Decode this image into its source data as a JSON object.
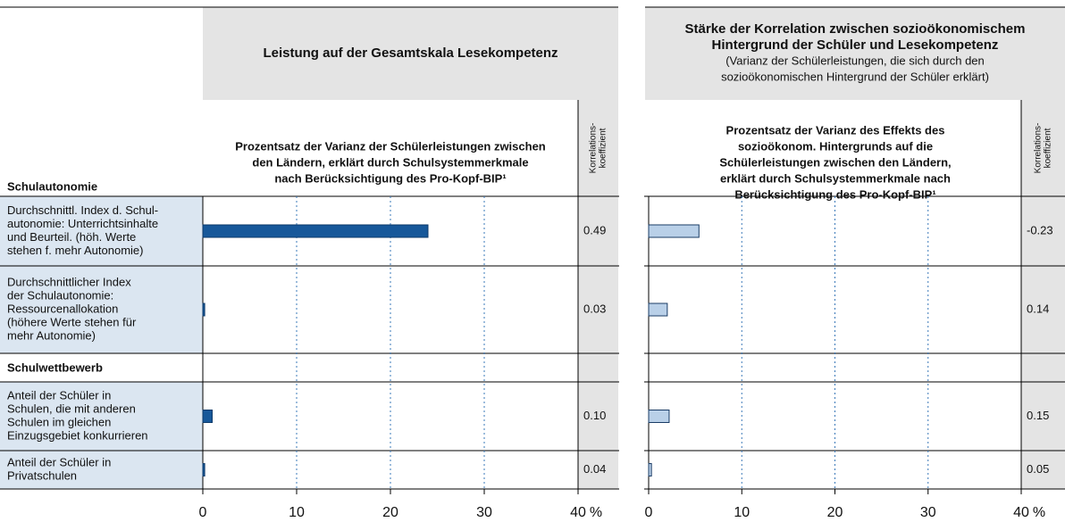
{
  "groups": [
    {
      "name": "Schulautonomie",
      "categories": [
        [
          "Durchschnittl. Index d. Schul-",
          "autonomie: Unterrichtsinhalte",
          "und Beurteil. (höh. Werte",
          "stehen f. mehr Autonomie)"
        ],
        [
          "Durchschnittlicher Index",
          "der Schulautonomie:",
          "Ressourcenallokation",
          "(höhere Werte stehen für",
          "mehr Autonomie)"
        ]
      ]
    },
    {
      "name": "Schulwettbewerb",
      "categories": [
        [
          "Anteil der Schüler in",
          "Schulen, die mit anderen",
          "Schulen im gleichen",
          "Einzugsgebiet konkurrieren"
        ],
        [
          "Anteil der Schüler in",
          "Privatschulen"
        ]
      ]
    }
  ],
  "chart_data": [
    {
      "type": "bar",
      "orientation": "horizontal",
      "color": "#17589a",
      "edge": "#0d3a6a",
      "title": [
        "Leistung auf der Gesamtskala Lesekompetenz"
      ],
      "subtitle": [],
      "column_label": [
        "Prozentsatz der Varianz der Schülerleistungen zwischen",
        "den Ländern, erklärt durch Schulsystemmerkmale",
        "nach Berücksichtigung des Pro-Kopf-BIP¹"
      ],
      "correlation_label": [
        "Korrelations-",
        "koeffizient"
      ],
      "values": [
        [
          24,
          0.2
        ],
        [
          1,
          0.2
        ]
      ],
      "correlations": [
        [
          "0.49",
          "0.03"
        ],
        [
          "0.10",
          "0.04"
        ]
      ],
      "xlim": [
        0,
        40
      ],
      "xticks": [
        0,
        10,
        20,
        30,
        40
      ],
      "unit": "%",
      "grid": true
    },
    {
      "type": "bar",
      "orientation": "horizontal",
      "color": "#b9d0e8",
      "edge": "#1a3c66",
      "title": [
        "Stärke der Korrelation zwischen sozioökonomischem",
        "Hintergrund der Schüler und Lesekompetenz"
      ],
      "subtitle": [
        "(Varianz der Schülerleistungen, die sich durch den",
        "sozioökonomischen Hintergrund der Schüler erklärt)"
      ],
      "column_label": [
        "Prozentsatz der Varianz des Effekts des",
        "sozioökonom. Hintergrunds auf die",
        "Schülerleistungen zwischen den Ländern,",
        "erklärt durch Schulsystemmerkmale nach",
        "Berücksichtigung des Pro-Kopf-BIP¹"
      ],
      "correlation_label": [
        "Korrelations-",
        "koeffizient"
      ],
      "values": [
        [
          5.4,
          2.0
        ],
        [
          2.2,
          0.3
        ]
      ],
      "correlations": [
        [
          "-0.23",
          "0.14"
        ],
        [
          "0.15",
          "0.05"
        ]
      ],
      "xlim": [
        0,
        40
      ],
      "xticks": [
        0,
        10,
        20,
        30,
        40
      ],
      "unit": "%",
      "grid": true
    }
  ]
}
